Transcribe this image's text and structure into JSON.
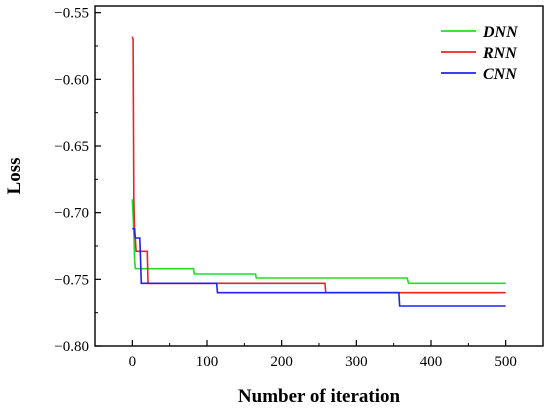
{
  "chart_data": {
    "type": "line",
    "title": "",
    "xlabel": "Number of iteration",
    "ylabel": "Loss",
    "xlim": [
      -50,
      550
    ],
    "ylim": [
      -0.8,
      -0.545
    ],
    "xticks": [
      0,
      100,
      200,
      300,
      400,
      500
    ],
    "yticks": [
      -0.8,
      -0.75,
      -0.7,
      -0.65,
      -0.6,
      -0.55
    ],
    "xtick_labels": [
      "0",
      "100",
      "200",
      "300",
      "400",
      "500"
    ],
    "ytick_labels": [
      "−0.80",
      "−0.75",
      "−0.70",
      "−0.65",
      "−0.60",
      "−0.55"
    ],
    "grid": false,
    "legend_position": "top-right",
    "series": [
      {
        "name": "DNN",
        "color": "#22dd22",
        "x": [
          0,
          2,
          3,
          4,
          82,
          83,
          165,
          166,
          368,
          370,
          500
        ],
        "y": [
          -0.69,
          -0.715,
          -0.735,
          -0.742,
          -0.742,
          -0.746,
          -0.746,
          -0.749,
          -0.749,
          -0.753,
          -0.753
        ]
      },
      {
        "name": "RNN",
        "color": "#ee2222",
        "x": [
          0,
          1,
          2,
          3,
          4,
          5,
          20,
          21,
          22,
          258,
          259,
          500
        ],
        "y": [
          -0.568,
          -0.57,
          -0.69,
          -0.716,
          -0.719,
          -0.729,
          -0.729,
          -0.753,
          -0.753,
          -0.753,
          -0.76,
          -0.76
        ]
      },
      {
        "name": "CNN",
        "color": "#2222ee",
        "x": [
          0,
          1,
          3,
          4,
          10,
          11,
          12,
          113,
          114,
          357,
          358,
          500
        ],
        "y": [
          -0.712,
          -0.712,
          -0.712,
          -0.719,
          -0.719,
          -0.735,
          -0.753,
          -0.753,
          -0.76,
          -0.76,
          -0.77,
          -0.77
        ]
      }
    ]
  }
}
